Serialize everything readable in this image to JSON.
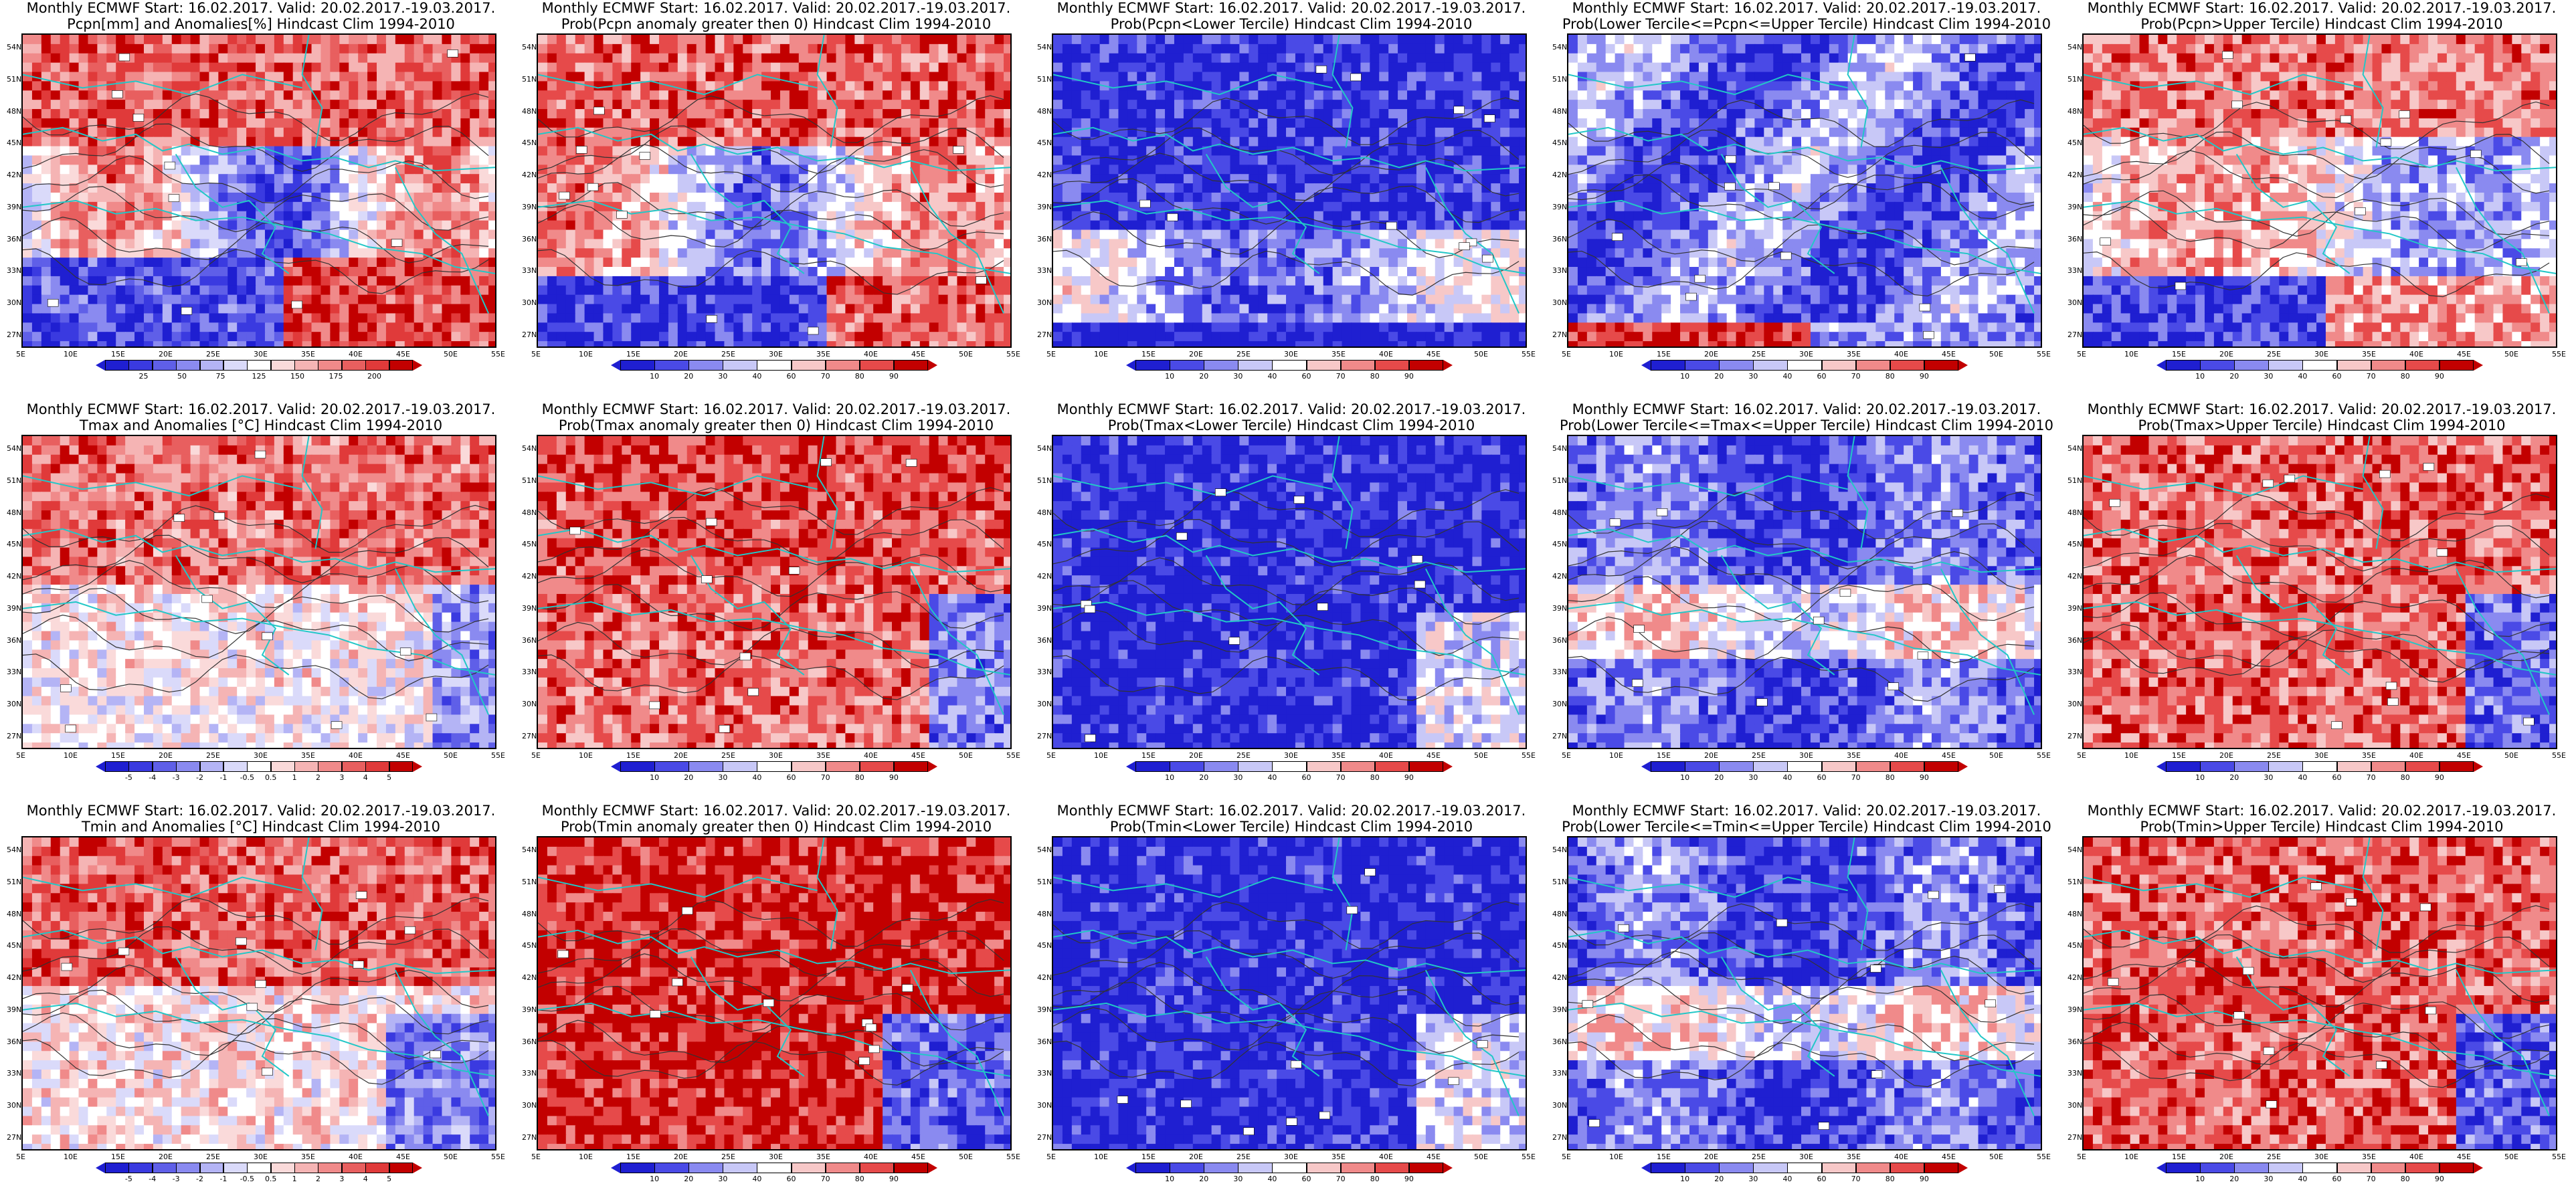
{
  "colors": {
    "prob": [
      "#1f1fd1",
      "#4a4ae6",
      "#8a8af0",
      "#c8c8f7",
      "#ffffff",
      "#f7c8c8",
      "#f08a8a",
      "#e64a4a",
      "#c20000"
    ],
    "anom": [
      "#1f1fd1",
      "#3a3ae0",
      "#5f5fe8",
      "#8a8af0",
      "#b4b4f5",
      "#dadafa",
      "#ffffff",
      "#fadada",
      "#f5b4b4",
      "#f08a8a",
      "#e85f5f",
      "#e03a3a",
      "#c20000"
    ],
    "coast": "#22c7c7",
    "contour": "#333333"
  },
  "lat_ticks": [
    "54N",
    "51N",
    "48N",
    "45N",
    "42N",
    "39N",
    "36N",
    "33N",
    "30N",
    "27N"
  ],
  "lon_ticks": [
    "5E",
    "10E",
    "15E",
    "20E",
    "25E",
    "30E",
    "35E",
    "40E",
    "45E",
    "50E",
    "55E"
  ],
  "scales": {
    "pcpn": [
      "25",
      "50",
      "75",
      "125",
      "150",
      "175",
      "200"
    ],
    "temp": [
      "-5",
      "-4",
      "-3",
      "-2",
      "-1",
      "-0.5",
      "0.5",
      "1",
      "2",
      "3",
      "4",
      "5"
    ],
    "prob": [
      "10",
      "20",
      "30",
      "40",
      "60",
      "70",
      "80",
      "90"
    ]
  },
  "chart_data": [
    {
      "type": "heatmap",
      "row": 0,
      "col": 0,
      "title": [
        "Monthly ECMWF Start: 16.02.2017. Valid: 20.02.2017.-19.03.2017.",
        "Pcpn[mm] and Anomalies[%] Hindcast Clim 1994-2010"
      ],
      "scale": "pcpn",
      "pattern": "pcpn_anom"
    },
    {
      "type": "heatmap",
      "row": 0,
      "col": 1,
      "title": [
        "Monthly ECMWF Start: 16.02.2017. Valid: 20.02.2017.-19.03.2017.",
        "Prob(Pcpn anomaly greater then 0) Hindcast Clim 1994-2010"
      ],
      "scale": "prob",
      "pattern": "pcpn_pos"
    },
    {
      "type": "heatmap",
      "row": 0,
      "col": 2,
      "title": [
        "Monthly ECMWF Start: 16.02.2017. Valid: 20.02.2017.-19.03.2017.",
        "Prob(Pcpn<Lower Tercile) Hindcast Clim 1994-2010"
      ],
      "scale": "prob",
      "pattern": "pcpn_low"
    },
    {
      "type": "heatmap",
      "row": 0,
      "col": 3,
      "title": [
        "Monthly ECMWF Start: 16.02.2017. Valid: 20.02.2017.-19.03.2017.",
        "Prob(Lower Tercile<=Pcpn<=Upper Tercile) Hindcast Clim 1994-2010"
      ],
      "scale": "prob",
      "pattern": "pcpn_mid"
    },
    {
      "type": "heatmap",
      "row": 0,
      "col": 4,
      "title": [
        "Monthly ECMWF Start: 16.02.2017. Valid: 20.02.2017.-19.03.2017.",
        "Prob(Pcpn>Upper Tercile) Hindcast Clim 1994-2010"
      ],
      "scale": "prob",
      "pattern": "pcpn_up"
    },
    {
      "type": "heatmap",
      "row": 1,
      "col": 0,
      "title": [
        "Monthly ECMWF Start: 16.02.2017. Valid: 20.02.2017.-19.03.2017.",
        "Tmax and Anomalies [°C] Hindcast Clim 1994-2010"
      ],
      "scale": "temp",
      "pattern": "t_anom"
    },
    {
      "type": "heatmap",
      "row": 1,
      "col": 1,
      "title": [
        "Monthly ECMWF Start: 16.02.2017. Valid: 20.02.2017.-19.03.2017.",
        "Prob(Tmax anomaly greater then 0) Hindcast Clim 1994-2010"
      ],
      "scale": "prob",
      "pattern": "t_pos"
    },
    {
      "type": "heatmap",
      "row": 1,
      "col": 2,
      "title": [
        "Monthly ECMWF Start: 16.02.2017. Valid: 20.02.2017.-19.03.2017.",
        "Prob(Tmax<Lower Tercile) Hindcast Clim 1994-2010"
      ],
      "scale": "prob",
      "pattern": "t_low"
    },
    {
      "type": "heatmap",
      "row": 1,
      "col": 3,
      "title": [
        "Monthly ECMWF Start: 16.02.2017. Valid: 20.02.2017.-19.03.2017.",
        "Prob(Lower Tercile<=Tmax<=Upper Tercile) Hindcast Clim 1994-2010"
      ],
      "scale": "prob",
      "pattern": "t_mid"
    },
    {
      "type": "heatmap",
      "row": 1,
      "col": 4,
      "title": [
        "Monthly ECMWF Start: 16.02.2017. Valid: 20.02.2017.-19.03.2017.",
        "Prob(Tmax>Upper Tercile) Hindcast Clim 1994-2010"
      ],
      "scale": "prob",
      "pattern": "t_up"
    },
    {
      "type": "heatmap",
      "row": 2,
      "col": 0,
      "title": [
        "Monthly ECMWF Start: 16.02.2017. Valid: 20.02.2017.-19.03.2017.",
        "Tmin and Anomalies [°C] Hindcast Clim 1994-2010"
      ],
      "scale": "temp",
      "pattern": "t_anom2"
    },
    {
      "type": "heatmap",
      "row": 2,
      "col": 1,
      "title": [
        "Monthly ECMWF Start: 16.02.2017. Valid: 20.02.2017.-19.03.2017.",
        "Prob(Tmin anomaly greater then 0) Hindcast Clim 1994-2010"
      ],
      "scale": "prob",
      "pattern": "t_pos2"
    },
    {
      "type": "heatmap",
      "row": 2,
      "col": 2,
      "title": [
        "Monthly ECMWF Start: 16.02.2017. Valid: 20.02.2017.-19.03.2017.",
        "Prob(Tmin<Lower Tercile) Hindcast Clim 1994-2010"
      ],
      "scale": "prob",
      "pattern": "t_low"
    },
    {
      "type": "heatmap",
      "row": 2,
      "col": 3,
      "title": [
        "Monthly ECMWF Start: 16.02.2017. Valid: 20.02.2017.-19.03.2017.",
        "Prob(Lower Tercile<=Tmin<=Upper Tercile) Hindcast Clim 1994-2010"
      ],
      "scale": "prob",
      "pattern": "t_mid"
    },
    {
      "type": "heatmap",
      "row": 2,
      "col": 4,
      "title": [
        "Monthly ECMWF Start: 16.02.2017. Valid: 20.02.2017.-19.03.2017.",
        "Prob(Tmin>Upper Tercile) Hindcast Clim 1994-2010"
      ],
      "scale": "prob",
      "pattern": "t_up2"
    }
  ]
}
